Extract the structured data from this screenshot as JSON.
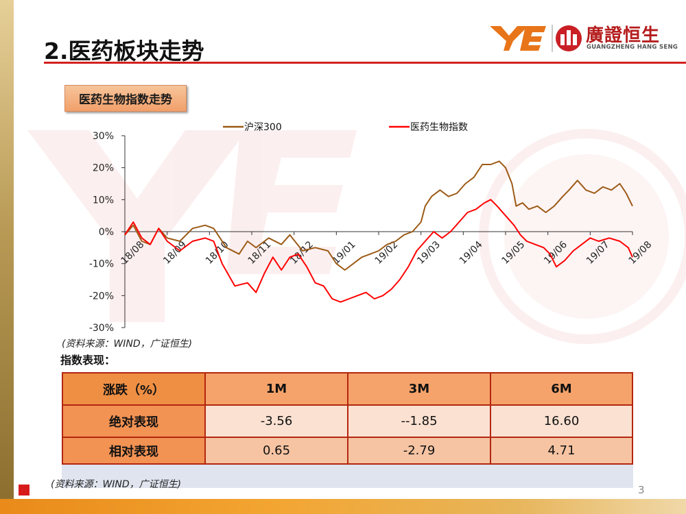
{
  "header": {
    "title": "2.医药板块走势"
  },
  "logo": {
    "name_cn": "廣證恒生",
    "name_en": "GUANGZHENG HANG SENG"
  },
  "colors": {
    "accent_red": "#d32020",
    "hs300_line": "#9c5a16",
    "index_line": "#ff0000",
    "table_border": "#b3260f"
  },
  "chart_badge": "医药生物指数走势",
  "chart_data": {
    "type": "line",
    "title": "",
    "xlabel": "",
    "ylabel": "",
    "ylim": [
      -30,
      30
    ],
    "y_ticks": [
      -30,
      -20,
      -10,
      0,
      10,
      20,
      30
    ],
    "y_tick_labels": [
      "-30%",
      "-20%",
      "-10%",
      "0%",
      "10%",
      "20%",
      "30%"
    ],
    "x_tick_labels": [
      "18/08",
      "18/09",
      "18/10",
      "18/11",
      "18/12",
      "19/01",
      "19/02",
      "19/03",
      "19/04",
      "19/05",
      "19/06",
      "19/07",
      "19/08"
    ],
    "x": [
      "18/08",
      "18/09",
      "18/10",
      "18/11",
      "18/12",
      "19/01",
      "19/02",
      "19/03",
      "19/04",
      "19/05",
      "19/06",
      "19/07",
      "19/08"
    ],
    "legend_position": "top",
    "series": [
      {
        "name": "沪深300",
        "color": "#9c5a16",
        "points": [
          [
            0,
            -1
          ],
          [
            0.2,
            2
          ],
          [
            0.4,
            -3
          ],
          [
            0.6,
            -4
          ],
          [
            0.8,
            1
          ],
          [
            1.0,
            -2
          ],
          [
            1.3,
            -3
          ],
          [
            1.6,
            1
          ],
          [
            1.9,
            2
          ],
          [
            2.1,
            1
          ],
          [
            2.4,
            -5
          ],
          [
            2.7,
            -7
          ],
          [
            2.9,
            -3
          ],
          [
            3.1,
            -5
          ],
          [
            3.4,
            -2
          ],
          [
            3.7,
            -4
          ],
          [
            3.9,
            -1
          ],
          [
            4.2,
            -6
          ],
          [
            4.5,
            -5
          ],
          [
            4.8,
            -6
          ],
          [
            5.0,
            -10
          ],
          [
            5.2,
            -12
          ],
          [
            5.4,
            -10
          ],
          [
            5.6,
            -8
          ],
          [
            5.8,
            -7
          ],
          [
            6.0,
            -6
          ],
          [
            6.2,
            -4
          ],
          [
            6.4,
            -3
          ],
          [
            6.6,
            -1
          ],
          [
            6.8,
            0
          ],
          [
            7.0,
            3
          ],
          [
            7.1,
            8
          ],
          [
            7.25,
            11
          ],
          [
            7.45,
            13
          ],
          [
            7.65,
            11
          ],
          [
            7.85,
            12
          ],
          [
            8.05,
            15
          ],
          [
            8.25,
            17
          ],
          [
            8.45,
            21
          ],
          [
            8.65,
            21
          ],
          [
            8.85,
            22
          ],
          [
            9.0,
            20
          ],
          [
            9.15,
            15
          ],
          [
            9.25,
            8
          ],
          [
            9.4,
            9
          ],
          [
            9.55,
            7
          ],
          [
            9.75,
            8
          ],
          [
            9.95,
            6
          ],
          [
            10.15,
            8
          ],
          [
            10.35,
            11
          ],
          [
            10.5,
            13
          ],
          [
            10.7,
            16
          ],
          [
            10.9,
            13
          ],
          [
            11.1,
            12
          ],
          [
            11.3,
            14
          ],
          [
            11.5,
            13
          ],
          [
            11.7,
            15
          ],
          [
            11.85,
            12
          ],
          [
            12.0,
            8
          ]
        ]
      },
      {
        "name": "医药生物指数",
        "color": "#ff0000",
        "points": [
          [
            0,
            -1
          ],
          [
            0.2,
            3
          ],
          [
            0.4,
            -2
          ],
          [
            0.6,
            -4
          ],
          [
            0.8,
            1
          ],
          [
            1.0,
            -3
          ],
          [
            1.3,
            -6
          ],
          [
            1.6,
            -3
          ],
          [
            1.9,
            -2
          ],
          [
            2.1,
            -3
          ],
          [
            2.3,
            -10
          ],
          [
            2.6,
            -17
          ],
          [
            2.9,
            -16
          ],
          [
            3.1,
            -19
          ],
          [
            3.3,
            -13
          ],
          [
            3.5,
            -8
          ],
          [
            3.7,
            -12
          ],
          [
            3.9,
            -8
          ],
          [
            4.1,
            -7
          ],
          [
            4.3,
            -11
          ],
          [
            4.5,
            -16
          ],
          [
            4.7,
            -17
          ],
          [
            4.9,
            -21
          ],
          [
            5.1,
            -22
          ],
          [
            5.3,
            -21
          ],
          [
            5.5,
            -20
          ],
          [
            5.7,
            -19
          ],
          [
            5.9,
            -21
          ],
          [
            6.1,
            -20
          ],
          [
            6.3,
            -18
          ],
          [
            6.5,
            -15
          ],
          [
            6.7,
            -11
          ],
          [
            6.9,
            -6
          ],
          [
            7.1,
            -3
          ],
          [
            7.3,
            0
          ],
          [
            7.5,
            -2
          ],
          [
            7.7,
            0
          ],
          [
            7.9,
            3
          ],
          [
            8.1,
            6
          ],
          [
            8.3,
            7
          ],
          [
            8.5,
            9
          ],
          [
            8.65,
            10
          ],
          [
            8.8,
            8
          ],
          [
            9.0,
            5
          ],
          [
            9.2,
            2
          ],
          [
            9.35,
            -1
          ],
          [
            9.5,
            -3
          ],
          [
            9.7,
            -4
          ],
          [
            9.9,
            -5
          ],
          [
            10.05,
            -7
          ],
          [
            10.2,
            -11
          ],
          [
            10.4,
            -9
          ],
          [
            10.6,
            -6
          ],
          [
            10.8,
            -4
          ],
          [
            11.0,
            -2
          ],
          [
            11.2,
            -3
          ],
          [
            11.45,
            -2
          ],
          [
            11.7,
            -3
          ],
          [
            11.9,
            -5
          ],
          [
            12.0,
            -8
          ]
        ]
      }
    ]
  },
  "chart_source": "(资料来源：WIND，广证恒生)",
  "performance": {
    "title": "指数表现：",
    "headers": [
      "涨跌（%）",
      "1M",
      "3M",
      "6M"
    ],
    "rows": [
      {
        "label": "绝对表现",
        "values": [
          "-3.56",
          "--1.85",
          "16.60"
        ]
      },
      {
        "label": "相对表现",
        "values": [
          "0.65",
          "-2.79",
          "4.71"
        ]
      }
    ]
  },
  "table_source": "(资料来源：WIND，广证恒生)",
  "page_number": "3"
}
